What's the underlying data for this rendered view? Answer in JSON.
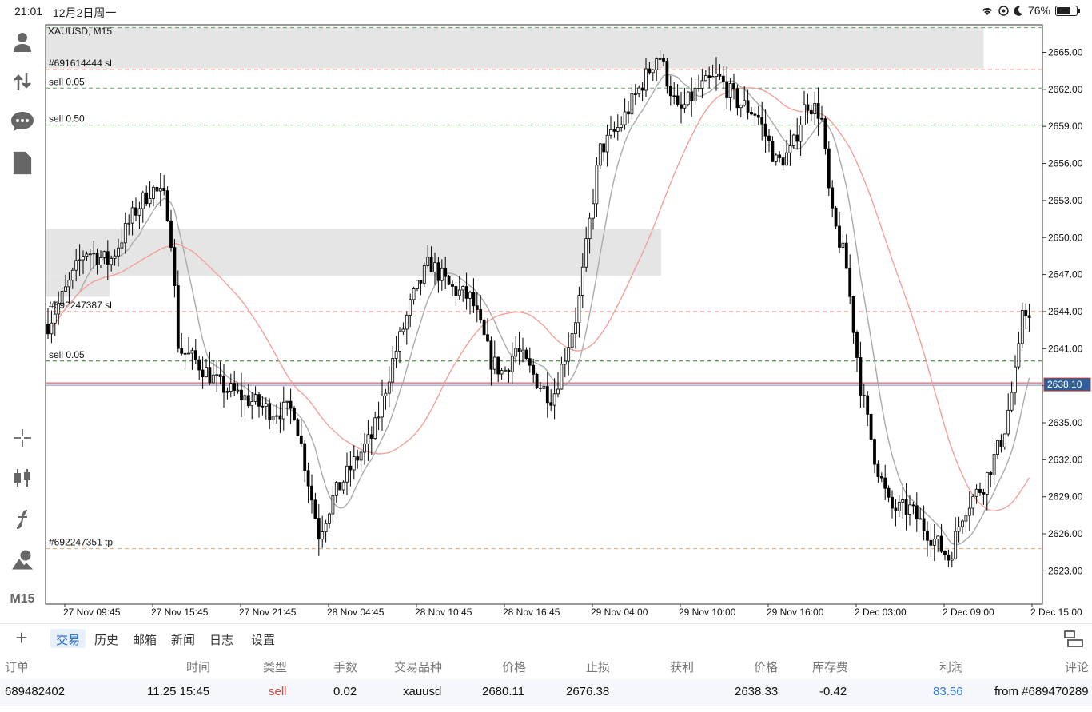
{
  "status": {
    "time": "21:01",
    "date": "12月2日周一",
    "battery": "76%",
    "battery_level": 0.76
  },
  "toolbar": {
    "timeframe": "M15"
  },
  "chart": {
    "symbol": "XAUUSD, M15",
    "current_price": "2638.10",
    "price_ticks": [
      "2665.00",
      "2662.00",
      "2659.00",
      "2656.00",
      "2653.00",
      "2650.00",
      "2647.00",
      "2644.00",
      "2641.00",
      "2638.00",
      "2635.00",
      "2632.00",
      "2629.00",
      "2626.00",
      "2623.00"
    ],
    "time_ticks": [
      "27 Nov 09:45",
      "27 Nov 15:45",
      "27 Nov 21:45",
      "28 Nov 04:45",
      "28 Nov 10:45",
      "28 Nov 16:45",
      "29 Nov 04:00",
      "29 Nov 10:00",
      "29 Nov 16:00",
      "2 Dec 03:00",
      "2 Dec 09:00",
      "2 Dec 15:00"
    ],
    "levels": [
      {
        "label": "",
        "price": 2667.0,
        "color": "#5ca85c"
      },
      {
        "label": "#691614444 sl",
        "price": 2663.6,
        "color": "#e8776e"
      },
      {
        "label": "sell 0.05",
        "price": 2662.1,
        "color": "#5ca85c"
      },
      {
        "label": "sell 0.50",
        "price": 2659.1,
        "color": "#5ca85c"
      },
      {
        "label": "#692247387 sl",
        "price": 2644.0,
        "color": "#e8776e"
      },
      {
        "label": "sell 0.05",
        "price": 2640.0,
        "color": "#1e7a1e"
      },
      {
        "label": "#692247351 tp",
        "price": 2624.8,
        "color": "#e8a86e"
      }
    ],
    "zones": [
      {
        "t0": 0,
        "t1": 380,
        "p_top": 2667.0,
        "p_bot": 2663.7
      },
      {
        "t0": 0,
        "t1": 249,
        "p_top": 2650.7,
        "p_bot": 2646.9
      },
      {
        "t0": 0,
        "t1": 25,
        "p_top": 2646.9,
        "p_bot": 2645.2
      }
    ],
    "colors": {
      "bull": "#000000",
      "bear": "#000000",
      "ma_fast": "#aaaaaa",
      "ma_slow": "#f5a09a"
    }
  },
  "tabs": [
    "交易",
    "历史",
    "邮箱",
    "新闻",
    "日志",
    "设置"
  ],
  "orders": {
    "headers": [
      "订单",
      "时间",
      "类型",
      "手数",
      "交易品种",
      "价格",
      "止损",
      "获利",
      "价格",
      "库存费",
      "利润",
      "评论"
    ],
    "row": [
      "689482402",
      "11.25 15:45",
      "sell",
      "0.02",
      "xauusd",
      "2680.11",
      "2676.38",
      "",
      "2638.33",
      "-0.42",
      "83.56",
      "from #689470289"
    ]
  }
}
